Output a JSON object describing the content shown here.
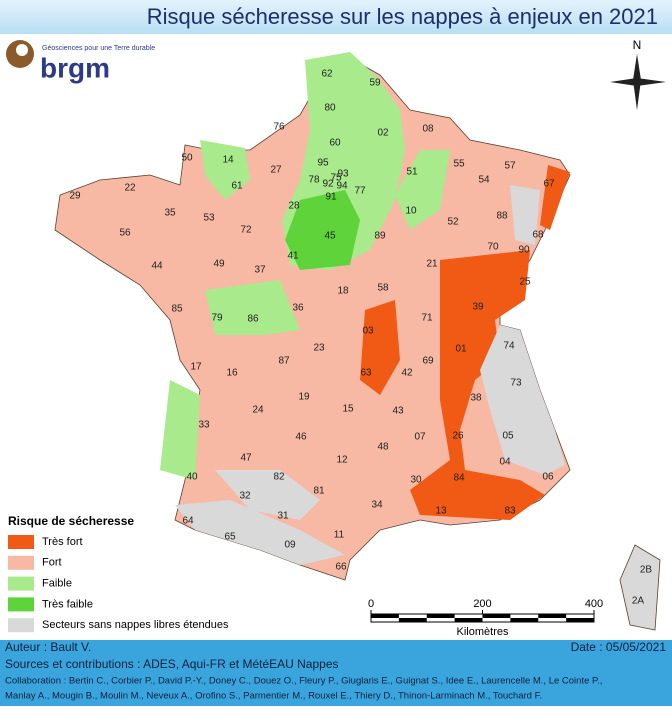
{
  "title": "Risque sécheresse sur les nappes à enjeux en 2021",
  "logo": {
    "tagline": "Géosciences pour une Terre durable",
    "name": "brgm"
  },
  "compass": "N",
  "legend": {
    "title": "Risque de sécheresse",
    "items": [
      {
        "label": "Très fort",
        "color": "#f05a14"
      },
      {
        "label": "Fort",
        "color": "#f7b9a3"
      },
      {
        "label": "Faible",
        "color": "#a8ea8c"
      },
      {
        "label": "Très faible",
        "color": "#5fd43a"
      },
      {
        "label": "Secteurs sans nappes libres étendues",
        "color": "#d9d9d9"
      }
    ]
  },
  "scale": {
    "ticks": [
      0,
      200,
      400
    ],
    "unit": "Kilomètres"
  },
  "departments": [
    "62",
    "59",
    "80",
    "76",
    "60",
    "02",
    "08",
    "50",
    "14",
    "27",
    "95",
    "78",
    "92",
    "75",
    "93",
    "94",
    "91",
    "77",
    "51",
    "55",
    "57",
    "54",
    "67",
    "29",
    "22",
    "61",
    "28",
    "35",
    "53",
    "10",
    "52",
    "88",
    "68",
    "90",
    "56",
    "72",
    "45",
    "89",
    "44",
    "49",
    "37",
    "41",
    "21",
    "70",
    "25",
    "18",
    "58",
    "36",
    "85",
    "79",
    "86",
    "71",
    "39",
    "03",
    "01",
    "74",
    "17",
    "16",
    "87",
    "23",
    "69",
    "63",
    "42",
    "73",
    "38",
    "19",
    "24",
    "15",
    "43",
    "33",
    "26",
    "05",
    "46",
    "07",
    "48",
    "12",
    "47",
    "04",
    "06",
    "40",
    "82",
    "81",
    "30",
    "84",
    "32",
    "34",
    "13",
    "83",
    "64",
    "65",
    "31",
    "11",
    "09",
    "66",
    "2B",
    "2A"
  ],
  "footer": {
    "author": "Auteur : Bault V.",
    "date": "Date : 05/05/2021",
    "sources": "Sources et contributions : ADES, Aqui-FR et MétéEAU Nappes",
    "collaboration_1": "Collaboration : Bertin C., Corbier P., David P.-Y., Doney C., Douez O., Fleury P., Giuglaris E., Guignat S., Idee E., Laurencelle M., Le Cointe P.,",
    "collaboration_2": "Manlay A., Mougin B., Moulin M., Neveux A., Orofino S., Parmentier M., Rouxel E., Thiery D., Thinon-Larminach M., Touchard F."
  }
}
